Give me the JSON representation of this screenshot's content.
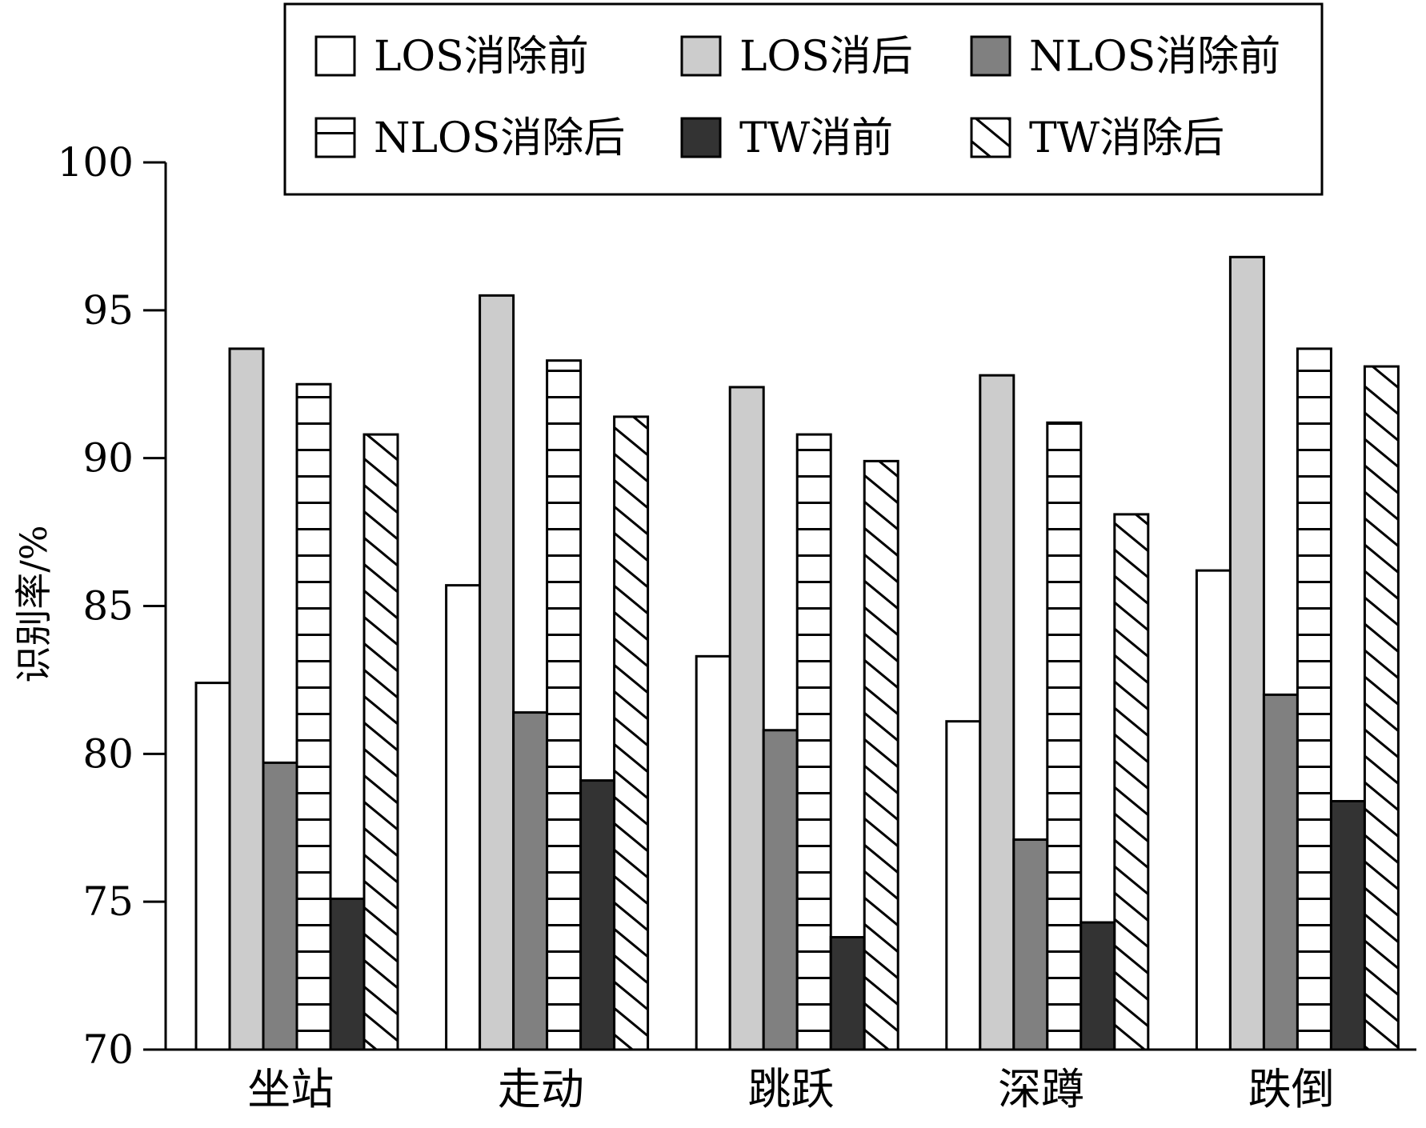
{
  "chart_data": {
    "type": "bar",
    "ylabel": "识别率/%",
    "xlabel": "",
    "ylim": [
      70,
      100
    ],
    "yticks": [
      70,
      75,
      80,
      85,
      90,
      95,
      100
    ],
    "legend_position": "top",
    "categories": [
      "坐站",
      "走动",
      "跳跃",
      "深蹲",
      "跌倒"
    ],
    "series": [
      {
        "name": "LOS消除前",
        "fill": "white",
        "color": "#ffffff",
        "values": [
          82.4,
          85.7,
          83.3,
          81.1,
          86.2
        ]
      },
      {
        "name": "LOS消后",
        "fill": "solid",
        "color": "#cccccc",
        "values": [
          93.7,
          95.5,
          92.4,
          92.8,
          96.8
        ]
      },
      {
        "name": "NLOS消除前",
        "fill": "solid",
        "color": "#808080",
        "values": [
          79.7,
          81.4,
          80.8,
          77.1,
          82.0
        ]
      },
      {
        "name": "NLOS消除后",
        "fill": "horizontal-lines",
        "color": "#ffffff",
        "values": [
          92.5,
          93.3,
          90.8,
          91.2,
          93.7
        ]
      },
      {
        "name": "TW消前",
        "fill": "solid",
        "color": "#333333",
        "values": [
          75.1,
          79.1,
          73.8,
          74.3,
          78.4
        ]
      },
      {
        "name": "TW消除后",
        "fill": "diagonal-lines",
        "color": "#ffffff",
        "values": [
          90.8,
          91.4,
          89.9,
          88.1,
          93.1
        ]
      }
    ]
  }
}
